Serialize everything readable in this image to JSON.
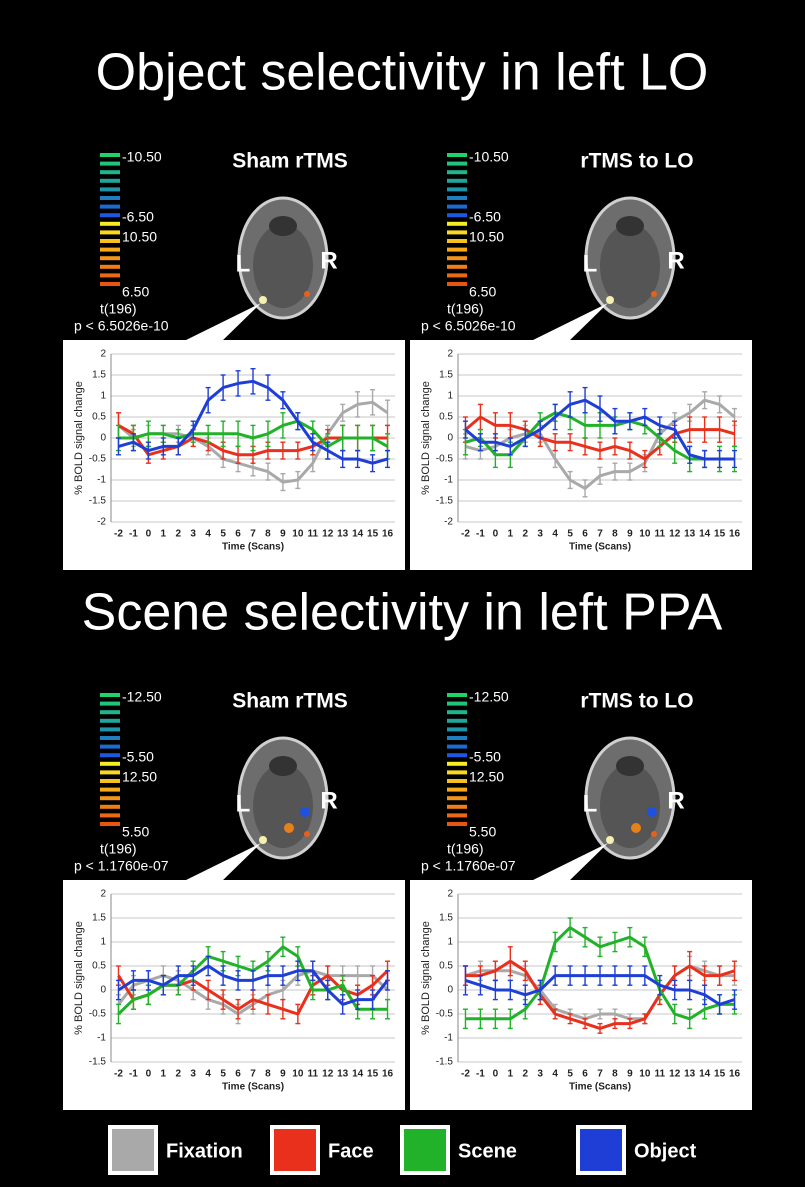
{
  "sections": [
    {
      "title": "Object selectivity in left LO",
      "panels": [
        {
          "title": "Sham rTMS",
          "colorbar": [
            "-10.50",
            "-6.50",
            "10.50",
            "6.50"
          ],
          "statistic": "t(196)",
          "threshold": "p < 6.5026e-10",
          "hemispheres": [
            "L",
            "R"
          ]
        },
        {
          "title": "rTMS to LO",
          "colorbar": [
            "-10.50",
            "-6.50",
            "10.50",
            "6.50"
          ],
          "statistic": "t(196)",
          "threshold": "p < 6.5026e-10",
          "hemispheres": [
            "L",
            "R"
          ]
        }
      ]
    },
    {
      "title": "Scene selectivity in left PPA",
      "panels": [
        {
          "title": "Sham rTMS",
          "colorbar": [
            "-12.50",
            "-5.50",
            "12.50",
            "5.50"
          ],
          "statistic": "t(196)",
          "threshold": "p < 1.1760e-07",
          "hemispheres": [
            "L",
            "R"
          ]
        },
        {
          "title": "rTMS to LO",
          "colorbar": [
            "-12.50",
            "-5.50",
            "12.50",
            "5.50"
          ],
          "statistic": "t(196)",
          "threshold": "p < 1.1760e-07",
          "hemispheres": [
            "L",
            "R"
          ]
        }
      ]
    }
  ],
  "chart_data": [
    {
      "type": "line",
      "y_label": "% BOLD signal change",
      "x_label": "Time (Scans)",
      "categories": [
        "-2",
        "-1",
        "0",
        "1",
        "2",
        "3",
        "4",
        "5",
        "6",
        "7",
        "8",
        "9",
        "10",
        "11",
        "12",
        "13",
        "14",
        "15",
        "16"
      ],
      "ylim": [
        -2,
        2
      ],
      "yticks": [
        -2,
        -1.5,
        -1,
        -0.5,
        0,
        0.5,
        1,
        1.5,
        2
      ],
      "grid": true,
      "series": [
        {
          "name": "Fixation",
          "color": "#a9a9a9",
          "values": [
            0.3,
            0.0,
            0.1,
            0.1,
            0.1,
            0.0,
            -0.2,
            -0.5,
            -0.6,
            -0.7,
            -0.8,
            -1.05,
            -1.0,
            -0.6,
            0.1,
            0.6,
            0.8,
            0.85,
            0.6
          ],
          "errors": [
            0.3,
            0.2,
            0.2,
            0.2,
            0.2,
            0.2,
            0.2,
            0.2,
            0.2,
            0.2,
            0.2,
            0.2,
            0.2,
            0.2,
            0.2,
            0.2,
            0.3,
            0.3,
            0.3
          ]
        },
        {
          "name": "Face",
          "color": "#e8301c",
          "values": [
            0.3,
            0.1,
            -0.4,
            -0.3,
            -0.2,
            0.0,
            -0.1,
            -0.3,
            -0.4,
            -0.4,
            -0.3,
            -0.3,
            -0.3,
            -0.2,
            0.0,
            0.0,
            0.0,
            0.0,
            0.0
          ],
          "errors": [
            0.3,
            0.2,
            0.2,
            0.2,
            0.2,
            0.2,
            0.2,
            0.2,
            0.2,
            0.2,
            0.2,
            0.2,
            0.2,
            0.2,
            0.2,
            0.3,
            0.3,
            0.3,
            0.3
          ]
        },
        {
          "name": "Scene",
          "color": "#22b22a",
          "values": [
            0.0,
            0.0,
            0.1,
            0.1,
            0.0,
            0.1,
            0.1,
            0.1,
            0.1,
            0.0,
            0.1,
            0.3,
            0.4,
            0.2,
            -0.2,
            0.0,
            0.0,
            0.0,
            -0.2
          ],
          "errors": [
            0.3,
            0.3,
            0.3,
            0.2,
            0.2,
            0.2,
            0.2,
            0.3,
            0.3,
            0.3,
            0.3,
            0.3,
            0.2,
            0.2,
            0.3,
            0.3,
            0.3,
            0.3,
            0.3
          ]
        },
        {
          "name": "Object",
          "color": "#1f3ed6",
          "values": [
            -0.2,
            -0.1,
            -0.3,
            -0.2,
            -0.2,
            0.2,
            0.9,
            1.2,
            1.3,
            1.35,
            1.2,
            0.9,
            0.4,
            -0.1,
            -0.3,
            -0.5,
            -0.5,
            -0.6,
            -0.5
          ],
          "errors": [
            0.2,
            0.2,
            0.2,
            0.2,
            0.2,
            0.2,
            0.3,
            0.3,
            0.3,
            0.3,
            0.3,
            0.2,
            0.2,
            0.2,
            0.2,
            0.2,
            0.2,
            0.2,
            0.2
          ]
        }
      ]
    },
    {
      "type": "line",
      "y_label": "% BOLD signal change",
      "x_label": "Time (Scans)",
      "categories": [
        "-2",
        "-1",
        "0",
        "1",
        "2",
        "3",
        "4",
        "5",
        "6",
        "7",
        "8",
        "9",
        "10",
        "11",
        "12",
        "13",
        "14",
        "15",
        "16"
      ],
      "ylim": [
        -2,
        2
      ],
      "yticks": [
        -2,
        -1.5,
        -1,
        -0.5,
        0,
        0.5,
        1,
        1.5,
        2
      ],
      "grid": true,
      "series": [
        {
          "name": "Fixation",
          "color": "#a9a9a9",
          "values": [
            -0.2,
            -0.3,
            -0.2,
            0.0,
            0.1,
            0.1,
            -0.5,
            -1.0,
            -1.2,
            -0.9,
            -0.8,
            -0.8,
            -0.6,
            0.1,
            0.4,
            0.6,
            0.9,
            0.8,
            0.5
          ],
          "errors": [
            0.3,
            0.2,
            0.2,
            0.2,
            0.2,
            0.2,
            0.2,
            0.2,
            0.2,
            0.2,
            0.2,
            0.2,
            0.2,
            0.2,
            0.2,
            0.2,
            0.2,
            0.2,
            0.2
          ]
        },
        {
          "name": "Face",
          "color": "#e8301c",
          "values": [
            0.2,
            0.5,
            0.3,
            0.3,
            0.2,
            0.0,
            -0.1,
            -0.1,
            -0.2,
            -0.3,
            -0.2,
            -0.3,
            -0.5,
            -0.2,
            0.1,
            0.2,
            0.2,
            0.2,
            0.1
          ],
          "errors": [
            0.3,
            0.3,
            0.3,
            0.3,
            0.2,
            0.2,
            0.2,
            0.2,
            0.2,
            0.2,
            0.2,
            0.2,
            0.2,
            0.2,
            0.2,
            0.3,
            0.3,
            0.3,
            0.3
          ]
        },
        {
          "name": "Scene",
          "color": "#22b22a",
          "values": [
            -0.1,
            0.0,
            -0.4,
            -0.4,
            0.0,
            0.4,
            0.6,
            0.5,
            0.3,
            0.3,
            0.3,
            0.4,
            0.3,
            0.0,
            -0.3,
            -0.5,
            -0.5,
            -0.5,
            -0.5
          ],
          "errors": [
            0.3,
            0.2,
            0.3,
            0.3,
            0.2,
            0.2,
            0.2,
            0.3,
            0.3,
            0.3,
            0.2,
            0.2,
            0.2,
            0.2,
            0.3,
            0.3,
            0.2,
            0.3,
            0.3
          ]
        },
        {
          "name": "Object",
          "color": "#1f3ed6",
          "values": [
            0.2,
            -0.1,
            -0.1,
            -0.2,
            0.0,
            0.2,
            0.5,
            0.8,
            0.9,
            0.7,
            0.4,
            0.4,
            0.5,
            0.3,
            0.2,
            -0.4,
            -0.5,
            -0.5,
            -0.5
          ],
          "errors": [
            0.2,
            0.2,
            0.2,
            0.2,
            0.2,
            0.2,
            0.3,
            0.3,
            0.3,
            0.3,
            0.3,
            0.2,
            0.2,
            0.2,
            0.2,
            0.2,
            0.2,
            0.2,
            0.2
          ]
        }
      ]
    },
    {
      "type": "line",
      "y_label": "% BOLD signal change",
      "x_label": "Time (Scans)",
      "categories": [
        "-2",
        "-1",
        "0",
        "1",
        "2",
        "3",
        "4",
        "5",
        "6",
        "7",
        "8",
        "9",
        "10",
        "11",
        "12",
        "13",
        "14",
        "15",
        "16"
      ],
      "ylim": [
        -1.5,
        2
      ],
      "yticks": [
        -1.5,
        -1,
        -0.5,
        0,
        0.5,
        1,
        1.5,
        2
      ],
      "grid": true,
      "series": [
        {
          "name": "Fixation",
          "color": "#a9a9a9",
          "values": [
            -0.3,
            0.1,
            0.2,
            0.3,
            0.2,
            0.0,
            -0.2,
            -0.3,
            -0.5,
            -0.3,
            -0.1,
            0.0,
            0.3,
            0.4,
            0.3,
            0.3,
            0.3,
            0.3,
            0.0
          ],
          "errors": [
            0.2,
            0.2,
            0.2,
            0.2,
            0.2,
            0.2,
            0.2,
            0.2,
            0.2,
            0.2,
            0.2,
            0.2,
            0.2,
            0.2,
            0.2,
            0.2,
            0.2,
            0.2,
            0.2
          ]
        },
        {
          "name": "Face",
          "color": "#e8301c",
          "values": [
            0.3,
            -0.2,
            -0.1,
            0.1,
            0.1,
            0.2,
            0.0,
            -0.2,
            -0.4,
            -0.2,
            -0.3,
            -0.4,
            -0.5,
            0.1,
            0.3,
            0.0,
            -0.1,
            0.1,
            0.4
          ],
          "errors": [
            0.2,
            0.2,
            0.2,
            0.2,
            0.2,
            0.2,
            0.2,
            0.2,
            0.2,
            0.2,
            0.2,
            0.2,
            0.2,
            0.2,
            0.2,
            0.2,
            0.2,
            0.2,
            0.2
          ]
        },
        {
          "name": "Scene",
          "color": "#22b22a",
          "values": [
            -0.5,
            -0.2,
            -0.1,
            0.1,
            0.1,
            0.4,
            0.7,
            0.6,
            0.5,
            0.4,
            0.6,
            0.9,
            0.7,
            0.0,
            0.0,
            0.1,
            -0.4,
            -0.4,
            -0.4
          ],
          "errors": [
            0.2,
            0.2,
            0.2,
            0.2,
            0.2,
            0.2,
            0.2,
            0.2,
            0.2,
            0.2,
            0.2,
            0.2,
            0.2,
            0.2,
            0.2,
            0.2,
            0.2,
            0.2,
            0.2
          ]
        },
        {
          "name": "Object",
          "color": "#1f3ed6",
          "values": [
            0.0,
            0.2,
            0.2,
            0.1,
            0.3,
            0.3,
            0.5,
            0.3,
            0.2,
            0.2,
            0.3,
            0.3,
            0.4,
            0.4,
            0.0,
            -0.3,
            -0.2,
            -0.2,
            0.2
          ],
          "errors": [
            0.2,
            0.2,
            0.2,
            0.2,
            0.2,
            0.2,
            0.2,
            0.2,
            0.2,
            0.2,
            0.2,
            0.2,
            0.2,
            0.2,
            0.2,
            0.2,
            0.2,
            0.2,
            0.2
          ]
        }
      ]
    },
    {
      "type": "line",
      "y_label": "% BOLD signal change",
      "x_label": "Time (Scans)",
      "categories": [
        "-2",
        "-1",
        "0",
        "1",
        "2",
        "3",
        "4",
        "5",
        "6",
        "7",
        "8",
        "9",
        "10",
        "11",
        "12",
        "13",
        "14",
        "15",
        "16"
      ],
      "ylim": [
        -1.5,
        2
      ],
      "yticks": [
        -1.5,
        -1,
        -0.5,
        0,
        0.5,
        1,
        1.5,
        2
      ],
      "grid": true,
      "series": [
        {
          "name": "Fixation",
          "color": "#a9a9a9",
          "values": [
            0.3,
            0.4,
            0.4,
            0.4,
            0.3,
            0.0,
            -0.4,
            -0.5,
            -0.6,
            -0.5,
            -0.5,
            -0.6,
            -0.6,
            -0.1,
            0.3,
            0.5,
            0.4,
            0.3,
            0.3
          ],
          "errors": [
            0.2,
            0.2,
            0.2,
            0.2,
            0.2,
            0.2,
            0.1,
            0.1,
            0.1,
            0.1,
            0.1,
            0.1,
            0.1,
            0.2,
            0.2,
            0.2,
            0.2,
            0.2,
            0.2
          ]
        },
        {
          "name": "Face",
          "color": "#e8301c",
          "values": [
            0.3,
            0.3,
            0.4,
            0.6,
            0.4,
            -0.1,
            -0.5,
            -0.6,
            -0.7,
            -0.8,
            -0.7,
            -0.7,
            -0.6,
            -0.1,
            0.3,
            0.5,
            0.3,
            0.3,
            0.4
          ],
          "errors": [
            0.2,
            0.2,
            0.2,
            0.3,
            0.2,
            0.2,
            0.1,
            0.1,
            0.1,
            0.1,
            0.1,
            0.1,
            0.1,
            0.2,
            0.2,
            0.3,
            0.2,
            0.2,
            0.2
          ]
        },
        {
          "name": "Scene",
          "color": "#22b22a",
          "values": [
            -0.6,
            -0.6,
            -0.6,
            -0.6,
            -0.4,
            0.0,
            1.0,
            1.3,
            1.1,
            0.9,
            1.0,
            1.1,
            0.9,
            0.0,
            -0.5,
            -0.6,
            -0.4,
            -0.3,
            -0.3
          ],
          "errors": [
            0.2,
            0.2,
            0.2,
            0.2,
            0.2,
            0.2,
            0.2,
            0.2,
            0.2,
            0.2,
            0.2,
            0.2,
            0.2,
            0.2,
            0.2,
            0.2,
            0.2,
            0.2,
            0.2
          ]
        },
        {
          "name": "Object",
          "color": "#1f3ed6",
          "values": [
            0.2,
            0.1,
            0.0,
            0.0,
            -0.1,
            0.0,
            0.3,
            0.3,
            0.3,
            0.3,
            0.3,
            0.3,
            0.3,
            0.1,
            0.0,
            0.0,
            -0.1,
            -0.3,
            -0.2
          ],
          "errors": [
            0.3,
            0.2,
            0.2,
            0.2,
            0.2,
            0.2,
            0.2,
            0.2,
            0.2,
            0.2,
            0.2,
            0.2,
            0.2,
            0.2,
            0.2,
            0.2,
            0.2,
            0.2,
            0.2
          ]
        }
      ]
    }
  ]
}
